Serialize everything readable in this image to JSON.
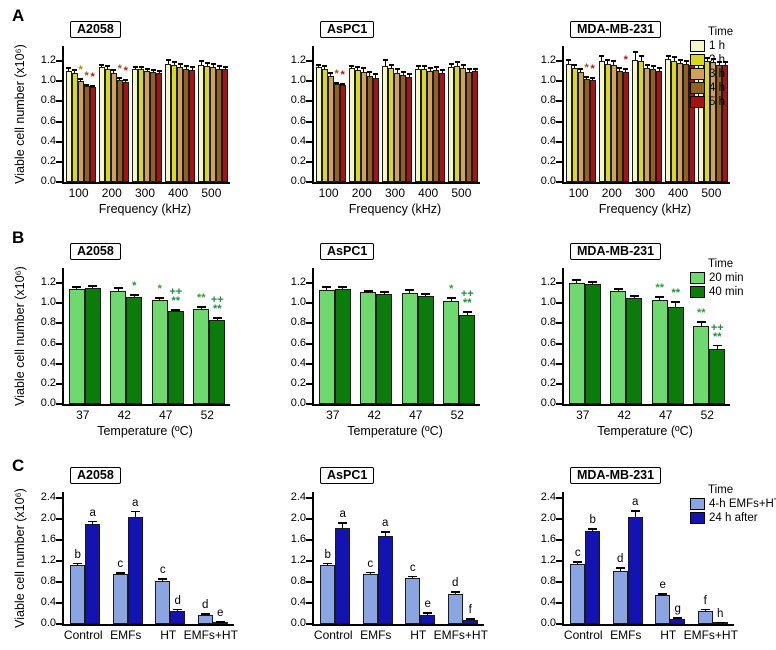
{
  "figure": {
    "background": "#ffffff",
    "axis_color": "#000000"
  },
  "chart_data": [
    {
      "section_label": "A",
      "type": "bar",
      "ylabel": "Viable cell number (x10⁶)",
      "xlabel": "Frequency (kHz)",
      "categories": [
        "100",
        "200",
        "300",
        "400",
        "500"
      ],
      "yticks": [
        0.0,
        0.2,
        0.4,
        0.6,
        0.8,
        1.0,
        1.2
      ],
      "ylim": [
        0,
        1.35
      ],
      "grid": false,
      "legend": {
        "title": "Time",
        "position": "right-of-last-panel"
      },
      "series_meta": [
        {
          "name": "1 h",
          "color": "#F6F6CB",
          "ann_color": "#9A8A10"
        },
        {
          "name": "2 h",
          "color": "#D9D821",
          "ann_color": "#9A8A10"
        },
        {
          "name": "3 h",
          "color": "#D2A159",
          "ann_color": "#A08818"
        },
        {
          "name": "4 h",
          "color": "#92601F",
          "ann_color": "#8A5A20"
        },
        {
          "name": "5 h",
          "color": "#AA1111",
          "ann_color": "#C01010"
        }
      ],
      "panels": [
        {
          "title": "A2058",
          "series": [
            {
              "name": "1 h",
              "values": [
                1.1,
                1.14,
                1.12,
                1.17,
                1.16
              ],
              "errors": [
                0.04,
                0.03,
                0.03,
                0.05,
                0.05
              ],
              "annotations": [
                "",
                "",
                "",
                "",
                ""
              ]
            },
            {
              "name": "2 h",
              "values": [
                1.08,
                1.12,
                1.12,
                1.16,
                1.15
              ],
              "errors": [
                0.04,
                0.04,
                0.03,
                0.04,
                0.04
              ],
              "annotations": [
                "",
                "",
                "",
                "",
                ""
              ]
            },
            {
              "name": "3 h",
              "values": [
                1.0,
                1.08,
                1.1,
                1.14,
                1.14
              ],
              "errors": [
                0.03,
                0.04,
                0.03,
                0.04,
                0.04
              ],
              "annotations": [
                "*",
                "",
                "",
                "",
                ""
              ]
            },
            {
              "name": "4 h",
              "values": [
                0.95,
                1.01,
                1.09,
                1.12,
                1.12
              ],
              "errors": [
                0.02,
                0.03,
                0.03,
                0.04,
                0.04
              ],
              "annotations": [
                "*",
                "*",
                "",
                "",
                ""
              ]
            },
            {
              "name": "5 h",
              "values": [
                0.94,
                0.99,
                1.08,
                1.11,
                1.12
              ],
              "errors": [
                0.02,
                0.03,
                0.03,
                0.04,
                0.03
              ],
              "annotations": [
                "*",
                "*",
                "",
                "",
                ""
              ]
            }
          ]
        },
        {
          "title": "AsPC1",
          "series": [
            {
              "name": "1 h",
              "values": [
                1.14,
                1.13,
                1.15,
                1.12,
                1.14
              ],
              "errors": [
                0.03,
                0.03,
                0.07,
                0.04,
                0.04
              ],
              "annotations": [
                "",
                "",
                "",
                "",
                ""
              ]
            },
            {
              "name": "2 h",
              "values": [
                1.12,
                1.11,
                1.13,
                1.12,
                1.15
              ],
              "errors": [
                0.04,
                0.04,
                0.04,
                0.04,
                0.05
              ],
              "annotations": [
                "",
                "",
                "",
                "",
                ""
              ]
            },
            {
              "name": "3 h",
              "values": [
                1.05,
                1.09,
                1.08,
                1.1,
                1.13
              ],
              "errors": [
                0.04,
                0.05,
                0.05,
                0.04,
                0.04
              ],
              "annotations": [
                "",
                "",
                "",
                "",
                ""
              ]
            },
            {
              "name": "4 h",
              "values": [
                0.97,
                1.05,
                1.06,
                1.11,
                1.09
              ],
              "errors": [
                0.02,
                0.05,
                0.04,
                0.04,
                0.04
              ],
              "annotations": [
                "*",
                "",
                "",
                "",
                ""
              ]
            },
            {
              "name": "5 h",
              "values": [
                0.96,
                1.03,
                1.04,
                1.08,
                1.1
              ],
              "errors": [
                0.02,
                0.05,
                0.04,
                0.04,
                0.03
              ],
              "annotations": [
                "*",
                "",
                "",
                "",
                ""
              ]
            }
          ]
        },
        {
          "title": "MDA-MB-231",
          "series": [
            {
              "name": "1 h",
              "values": [
                1.17,
                1.2,
                1.21,
                1.22,
                1.21
              ],
              "errors": [
                0.05,
                0.06,
                0.09,
                0.04,
                0.05
              ],
              "annotations": [
                "",
                "",
                "",
                "",
                ""
              ]
            },
            {
              "name": "2 h",
              "values": [
                1.13,
                1.17,
                1.2,
                1.2,
                1.2
              ],
              "errors": [
                0.04,
                0.05,
                0.06,
                0.05,
                0.04
              ],
              "annotations": [
                "",
                "",
                "",
                "",
                ""
              ]
            },
            {
              "name": "3 h",
              "values": [
                1.09,
                1.16,
                1.13,
                1.18,
                1.19
              ],
              "errors": [
                0.04,
                0.05,
                0.04,
                0.04,
                0.04
              ],
              "annotations": [
                "",
                "",
                "",
                "",
                ""
              ]
            },
            {
              "name": "4 h",
              "values": [
                1.02,
                1.1,
                1.12,
                1.17,
                1.16
              ],
              "errors": [
                0.03,
                0.04,
                0.04,
                0.04,
                0.04
              ],
              "annotations": [
                "*",
                "",
                "",
                "",
                ""
              ]
            },
            {
              "name": "5 h",
              "values": [
                1.01,
                1.09,
                1.1,
                1.16,
                1.16
              ],
              "errors": [
                0.03,
                0.04,
                0.04,
                0.03,
                0.04
              ],
              "annotations": [
                "*",
                "*",
                "",
                "",
                ""
              ]
            }
          ]
        }
      ]
    },
    {
      "section_label": "B",
      "type": "bar",
      "ylabel": "Viable cell number (x10⁶)",
      "xlabel": "Temperature (ºC)",
      "categories": [
        "37",
        "42",
        "47",
        "52"
      ],
      "yticks": [
        0.0,
        0.2,
        0.4,
        0.6,
        0.8,
        1.0,
        1.2
      ],
      "ylim": [
        0,
        1.35
      ],
      "grid": false,
      "legend": {
        "title": "Time",
        "position": "right-of-last-panel"
      },
      "series_meta": [
        {
          "name": "20 min",
          "color": "#6FD96F",
          "ann_color": "#2BA42B"
        },
        {
          "name": "40 min",
          "color": "#0B7C0B",
          "ann_color": "#1C8F3C"
        }
      ],
      "panels": [
        {
          "title": "A2058",
          "series": [
            {
              "name": "20 min",
              "values": [
                1.14,
                1.12,
                1.03,
                0.94
              ],
              "errors": [
                0.03,
                0.04,
                0.03,
                0.03
              ],
              "annotations": [
                "",
                "",
                "*",
                "**"
              ]
            },
            {
              "name": "40 min",
              "values": [
                1.15,
                1.06,
                0.92,
                0.83
              ],
              "errors": [
                0.03,
                0.03,
                0.02,
                0.03
              ],
              "annotations": [
                "",
                "*",
                "++\n**",
                "++\n**"
              ]
            }
          ]
        },
        {
          "title": "AsPC1",
          "series": [
            {
              "name": "20 min",
              "values": [
                1.13,
                1.11,
                1.1,
                1.02
              ],
              "errors": [
                0.04,
                0.02,
                0.04,
                0.04
              ],
              "annotations": [
                "",
                "",
                "",
                "*"
              ]
            },
            {
              "name": "40 min",
              "values": [
                1.14,
                1.09,
                1.07,
                0.88
              ],
              "errors": [
                0.03,
                0.03,
                0.03,
                0.04
              ],
              "annotations": [
                "",
                "",
                "",
                "++\n**"
              ]
            }
          ]
        },
        {
          "title": "MDA-MB-231",
          "series": [
            {
              "name": "20 min",
              "values": [
                1.2,
                1.12,
                1.03,
                0.77
              ],
              "errors": [
                0.04,
                0.03,
                0.04,
                0.05
              ],
              "annotations": [
                "",
                "",
                "**",
                "**"
              ]
            },
            {
              "name": "40 min",
              "values": [
                1.19,
                1.05,
                0.96,
                0.55
              ],
              "errors": [
                0.03,
                0.03,
                0.06,
                0.04
              ],
              "annotations": [
                "",
                "",
                "**",
                "++\n**"
              ]
            }
          ]
        }
      ]
    },
    {
      "section_label": "C",
      "type": "bar",
      "ylabel": "Viable cell number (x10⁶)",
      "xlabel": "",
      "categories": [
        "Control",
        "EMFs",
        "HT",
        "EMFs+HT"
      ],
      "yticks": [
        0.0,
        0.4,
        0.8,
        1.2,
        1.6,
        2.0,
        2.4
      ],
      "ylim": [
        0,
        2.52
      ],
      "grid": false,
      "legend": {
        "title": "Time",
        "position": "right-of-last-panel"
      },
      "series_meta": [
        {
          "name": "4-h EMFs+HT",
          "color": "#8AA5E2",
          "ann_color": "#000000"
        },
        {
          "name": "24 h after",
          "color": "#1313B2",
          "ann_color": "#000000"
        }
      ],
      "panels": [
        {
          "title": "A2058",
          "series": [
            {
              "name": "4-h EMFs+HT",
              "values": [
                1.13,
                0.95,
                0.83,
                0.18
              ],
              "errors": [
                0.04,
                0.04,
                0.04,
                0.03
              ],
              "annotations": [
                "b",
                "c",
                "c",
                "d"
              ]
            },
            {
              "name": "24 h after",
              "values": [
                1.91,
                2.04,
                0.24,
                0.03
              ],
              "errors": [
                0.06,
                0.12,
                0.05,
                0.02
              ],
              "annotations": [
                "a",
                "a",
                "d",
                "e"
              ]
            }
          ]
        },
        {
          "title": "AsPC1",
          "series": [
            {
              "name": "4-h EMFs+HT",
              "values": [
                1.13,
                0.96,
                0.88,
                0.57
              ],
              "errors": [
                0.04,
                0.04,
                0.04,
                0.06
              ],
              "annotations": [
                "b",
                "c",
                "c",
                "d"
              ]
            },
            {
              "name": "24 h after",
              "values": [
                1.84,
                1.68,
                0.18,
                0.07
              ],
              "errors": [
                0.1,
                0.09,
                0.04,
                0.04
              ],
              "annotations": [
                "a",
                "a",
                "e",
                "f"
              ]
            }
          ]
        },
        {
          "title": "MDA-MB-231",
          "series": [
            {
              "name": "4-h EMFs+HT",
              "values": [
                1.15,
                1.02,
                0.55,
                0.24
              ],
              "errors": [
                0.05,
                0.06,
                0.04,
                0.05
              ],
              "annotations": [
                "c",
                "d",
                "e",
                "f"
              ]
            },
            {
              "name": "24 h after",
              "values": [
                1.78,
                2.04,
                0.1,
                0.02
              ],
              "errors": [
                0.05,
                0.13,
                0.03,
                0.02
              ],
              "annotations": [
                "b",
                "a",
                "g",
                "h"
              ]
            }
          ]
        }
      ]
    }
  ]
}
